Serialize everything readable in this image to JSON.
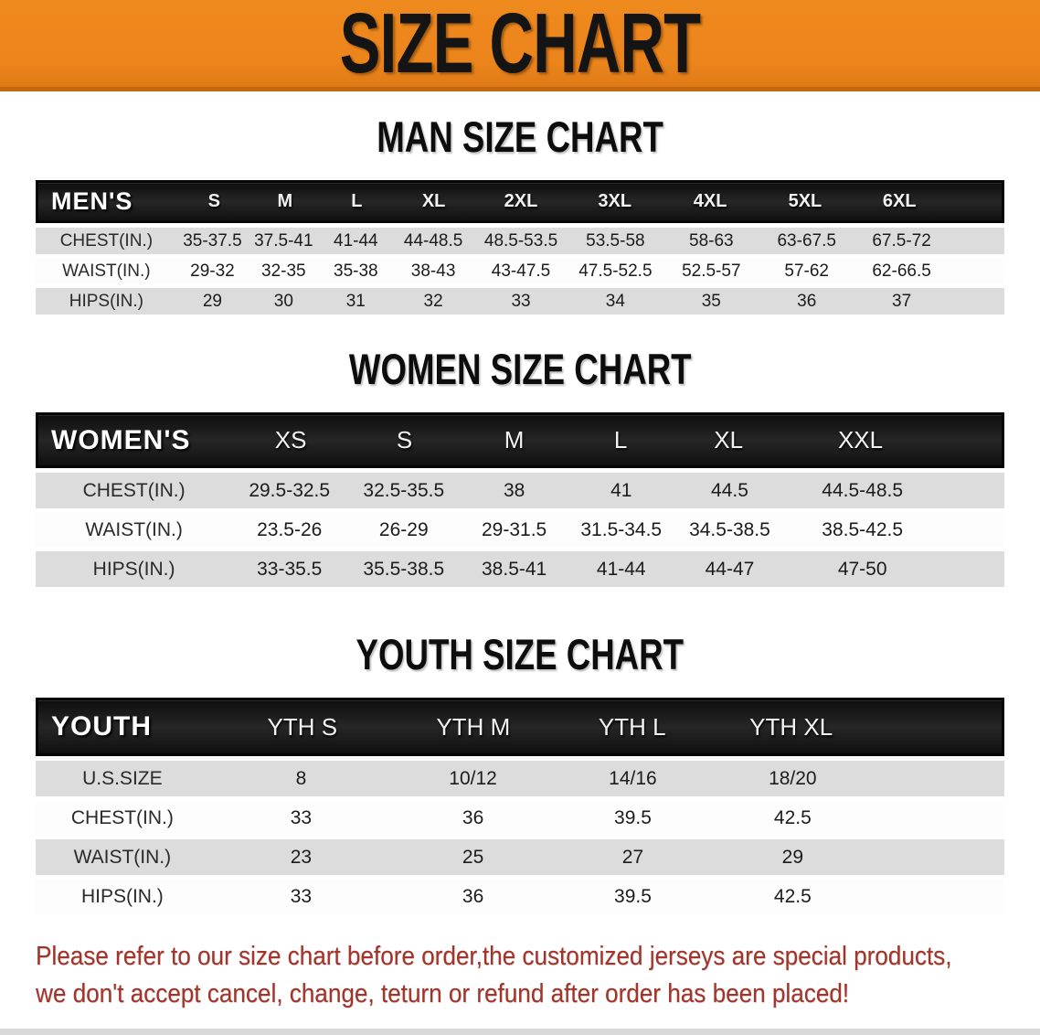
{
  "banner": {
    "title": "SIZE CHART",
    "bg_color": "#EC851C"
  },
  "sections": [
    {
      "heading": "MAN SIZE CHART",
      "table": {
        "header_label": "MEN'S",
        "sizes": [
          "S",
          "M",
          "L",
          "XL",
          "2XL",
          "3XL",
          "4XL",
          "5XL",
          "6XL"
        ],
        "rows": [
          {
            "label": "CHEST(IN.)",
            "values": [
              "35-37.5",
              "37.5-41",
              "41-44",
              "44-48.5",
              "48.5-53.5",
              "53.5-58",
              "58-63",
              "63-67.5",
              "67.5-72"
            ]
          },
          {
            "label": "WAIST(IN.)",
            "values": [
              "29-32",
              "32-35",
              "35-38",
              "38-43",
              "43-47.5",
              "47.5-52.5",
              "52.5-57",
              "57-62",
              "62-66.5"
            ]
          },
          {
            "label": "HIPS(IN.)",
            "values": [
              "29",
              "30",
              "31",
              "32",
              "33",
              "34",
              "35",
              "36",
              "37"
            ]
          }
        ]
      }
    },
    {
      "heading": "WOMEN SIZE CHART",
      "table": {
        "header_label": "WOMEN'S",
        "sizes": [
          "XS",
          "S",
          "M",
          "L",
          "XL",
          "XXL"
        ],
        "rows": [
          {
            "label": "CHEST(IN.)",
            "values": [
              "29.5-32.5",
              "32.5-35.5",
              "38",
              "41",
              "44.5",
              "44.5-48.5"
            ]
          },
          {
            "label": "WAIST(IN.)",
            "values": [
              "23.5-26",
              "26-29",
              "29-31.5",
              "31.5-34.5",
              "34.5-38.5",
              "38.5-42.5"
            ]
          },
          {
            "label": "HIPS(IN.)",
            "values": [
              "33-35.5",
              "35.5-38.5",
              "38.5-41",
              "41-44",
              "44-47",
              "47-50"
            ]
          }
        ]
      }
    },
    {
      "heading": "YOUTH SIZE CHART",
      "table": {
        "header_label": "YOUTH",
        "sizes": [
          "YTH S",
          "YTH M",
          "YTH L",
          "YTH XL"
        ],
        "rows": [
          {
            "label": "U.S.SIZE",
            "values": [
              "8",
              "10/12",
              "14/16",
              "18/20"
            ]
          },
          {
            "label": "CHEST(IN.)",
            "values": [
              "33",
              "36",
              "39.5",
              "42.5"
            ]
          },
          {
            "label": "WAIST(IN.)",
            "values": [
              "23",
              "25",
              "27",
              "29"
            ]
          },
          {
            "label": "HIPS(IN.)",
            "values": [
              "33",
              "36",
              "39.5",
              "42.5"
            ]
          }
        ]
      }
    }
  ],
  "footer": {
    "line1": "Please refer to our size chart before order,the customized jerseys are special products,",
    "line2": "we don't accept cancel, change, teturn or refund after order has been placed!",
    "text_color": "#A3342A"
  },
  "colors": {
    "header_bg": "#191919",
    "stripe": "#DCDCDC",
    "banner_border": "#C2690F"
  }
}
